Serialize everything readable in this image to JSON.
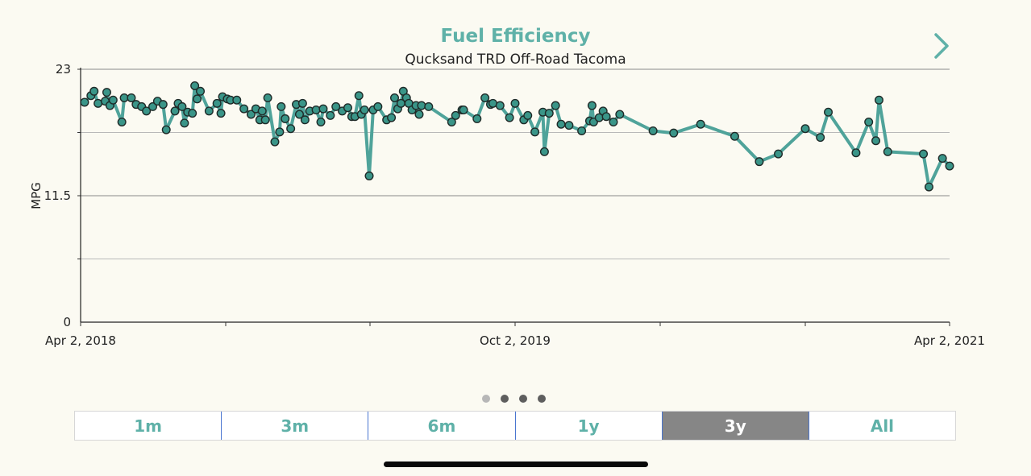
{
  "header": {
    "title": "Fuel Efficiency",
    "subtitle": "Qucksand TRD Off-Road Tacoma",
    "next_icon": "chevron-right-icon"
  },
  "colors": {
    "accent": "#5fb1a8",
    "line": "#4fa39a",
    "marker_fill": "#3a9588",
    "active_tab": "#868686",
    "background": "#fbfaf2"
  },
  "pager": {
    "count": 4,
    "active_index": 0
  },
  "tabs": [
    {
      "label": "1m",
      "active": false
    },
    {
      "label": "3m",
      "active": false
    },
    {
      "label": "6m",
      "active": false
    },
    {
      "label": "1y",
      "active": false
    },
    {
      "label": "3y",
      "active": true
    },
    {
      "label": "All",
      "active": false
    }
  ],
  "chart_data": {
    "type": "line",
    "ylabel": "MPG",
    "ylim": [
      0,
      23
    ],
    "yticks": [
      "0",
      "11.5",
      "23"
    ],
    "xlim": [
      "2018-04-02",
      "2021-04-02"
    ],
    "xticks": [
      "Apr 2, 2018",
      "Oct 2, 2019",
      "Apr 2, 2021"
    ],
    "grid": true,
    "series": [
      {
        "values": [
          [
            "2018-04-07",
            20.0
          ],
          [
            "2018-04-15",
            20.6
          ],
          [
            "2018-04-19",
            21.0
          ],
          [
            "2018-04-24",
            19.9
          ],
          [
            "2018-05-03",
            20.1
          ],
          [
            "2018-05-05",
            20.9
          ],
          [
            "2018-05-09",
            19.7
          ],
          [
            "2018-05-13",
            20.2
          ],
          [
            "2018-05-24",
            18.2
          ],
          [
            "2018-05-27",
            20.4
          ],
          [
            "2018-06-05",
            20.4
          ],
          [
            "2018-06-11",
            19.8
          ],
          [
            "2018-06-18",
            19.6
          ],
          [
            "2018-06-24",
            19.2
          ],
          [
            "2018-07-02",
            19.6
          ],
          [
            "2018-07-08",
            20.1
          ],
          [
            "2018-07-15",
            19.8
          ],
          [
            "2018-07-19",
            17.5
          ],
          [
            "2018-07-30",
            19.2
          ],
          [
            "2018-08-03",
            19.9
          ],
          [
            "2018-08-08",
            19.6
          ],
          [
            "2018-08-11",
            18.1
          ],
          [
            "2018-08-15",
            19.1
          ],
          [
            "2018-08-21",
            19.0
          ],
          [
            "2018-08-24",
            21.5
          ],
          [
            "2018-08-27",
            20.3
          ],
          [
            "2018-08-31",
            21.0
          ],
          [
            "2018-09-11",
            19.2
          ],
          [
            "2018-09-21",
            19.9
          ],
          [
            "2018-09-26",
            19.0
          ],
          [
            "2018-09-28",
            20.5
          ],
          [
            "2018-10-04",
            20.3
          ],
          [
            "2018-10-08",
            20.2
          ],
          [
            "2018-10-16",
            20.2
          ],
          [
            "2018-10-25",
            19.4
          ],
          [
            "2018-11-03",
            18.9
          ],
          [
            "2018-11-09",
            19.4
          ],
          [
            "2018-11-14",
            18.4
          ],
          [
            "2018-11-17",
            19.2
          ],
          [
            "2018-11-21",
            18.4
          ],
          [
            "2018-11-24",
            20.4
          ],
          [
            "2018-12-03",
            16.4
          ],
          [
            "2018-12-09",
            17.3
          ],
          [
            "2018-12-11",
            19.6
          ],
          [
            "2018-12-16",
            18.5
          ],
          [
            "2018-12-23",
            17.6
          ],
          [
            "2018-12-30",
            19.8
          ],
          [
            "2019-01-03",
            18.9
          ],
          [
            "2019-01-07",
            19.9
          ],
          [
            "2019-01-10",
            18.4
          ],
          [
            "2019-01-16",
            19.2
          ],
          [
            "2019-01-24",
            19.3
          ],
          [
            "2019-01-30",
            18.2
          ],
          [
            "2019-02-02",
            19.4
          ],
          [
            "2019-02-11",
            18.8
          ],
          [
            "2019-02-18",
            19.6
          ],
          [
            "2019-02-26",
            19.2
          ],
          [
            "2019-03-05",
            19.5
          ],
          [
            "2019-03-10",
            18.7
          ],
          [
            "2019-03-14",
            18.7
          ],
          [
            "2019-03-19",
            20.6
          ],
          [
            "2019-03-22",
            18.9
          ],
          [
            "2019-03-26",
            19.3
          ],
          [
            "2019-04-01",
            13.3
          ],
          [
            "2019-04-06",
            19.3
          ],
          [
            "2019-04-12",
            19.6
          ],
          [
            "2019-04-23",
            18.4
          ],
          [
            "2019-04-29",
            18.6
          ],
          [
            "2019-05-03",
            20.4
          ],
          [
            "2019-05-07",
            19.4
          ],
          [
            "2019-05-11",
            19.9
          ],
          [
            "2019-05-14",
            21.0
          ],
          [
            "2019-05-18",
            20.4
          ],
          [
            "2019-05-21",
            19.9
          ],
          [
            "2019-05-25",
            19.3
          ],
          [
            "2019-05-30",
            19.7
          ],
          [
            "2019-06-03",
            18.9
          ],
          [
            "2019-06-06",
            19.7
          ],
          [
            "2019-06-15",
            19.6
          ],
          [
            "2019-07-14",
            18.2
          ],
          [
            "2019-07-19",
            18.8
          ],
          [
            "2019-07-27",
            19.3
          ],
          [
            "2019-07-29",
            19.3
          ],
          [
            "2019-08-15",
            18.5
          ],
          [
            "2019-08-25",
            20.4
          ],
          [
            "2019-09-01",
            19.8
          ],
          [
            "2019-09-04",
            19.9
          ],
          [
            "2019-09-13",
            19.7
          ],
          [
            "2019-09-25",
            18.6
          ],
          [
            "2019-10-02",
            19.9
          ],
          [
            "2019-10-13",
            18.4
          ],
          [
            "2019-10-18",
            18.8
          ],
          [
            "2019-10-27",
            17.3
          ],
          [
            "2019-11-06",
            19.1
          ],
          [
            "2019-11-08",
            15.5
          ],
          [
            "2019-11-14",
            19.0
          ],
          [
            "2019-11-22",
            19.7
          ],
          [
            "2019-11-29",
            18.0
          ],
          [
            "2019-12-09",
            17.9
          ],
          [
            "2019-12-25",
            17.4
          ],
          [
            "2020-01-04",
            18.3
          ],
          [
            "2020-01-07",
            19.7
          ],
          [
            "2020-01-09",
            18.2
          ],
          [
            "2020-01-16",
            18.6
          ],
          [
            "2020-01-21",
            19.2
          ],
          [
            "2020-01-25",
            18.7
          ],
          [
            "2020-02-03",
            18.2
          ],
          [
            "2020-02-11",
            18.9
          ],
          [
            "2020-03-24",
            17.4
          ],
          [
            "2020-04-19",
            17.2
          ],
          [
            "2020-05-23",
            18.0
          ],
          [
            "2020-07-05",
            16.9
          ],
          [
            "2020-08-05",
            14.6
          ],
          [
            "2020-08-29",
            15.3
          ],
          [
            "2020-10-02",
            17.6
          ],
          [
            "2020-10-21",
            16.8
          ],
          [
            "2020-10-31",
            19.1
          ],
          [
            "2020-12-05",
            15.4
          ],
          [
            "2020-12-21",
            18.2
          ],
          [
            "2020-12-30",
            16.5
          ],
          [
            "2021-01-03",
            20.2
          ],
          [
            "2021-01-14",
            15.5
          ],
          [
            "2021-02-28",
            15.3
          ],
          [
            "2021-03-07",
            12.3
          ],
          [
            "2021-03-24",
            14.9
          ],
          [
            "2021-04-02",
            14.2
          ]
        ]
      }
    ]
  }
}
